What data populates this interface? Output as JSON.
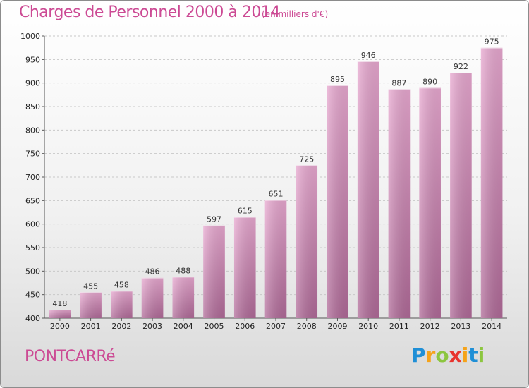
{
  "header": {
    "title": "Charges de Personnel 2000 à 2014",
    "subtitle": "(en milliers d'€)"
  },
  "footer": {
    "commune": "PONTCARRé",
    "logo_letters": [
      "P",
      "r",
      "o",
      "x",
      "i",
      "t",
      "i"
    ],
    "logo_colors": [
      "#1f8fd6",
      "#f5a31a",
      "#8cc63f",
      "#e8342e",
      "#f5a31a",
      "#1f8fd6",
      "#8cc63f"
    ]
  },
  "colors": {
    "bar_top": "#e8a8d0",
    "bar_bottom": "#b06a98",
    "text_accent": "#cc4a94"
  },
  "chart_data": {
    "type": "bar",
    "categories": [
      "2000",
      "2001",
      "2002",
      "2003",
      "2004",
      "2005",
      "2006",
      "2007",
      "2008",
      "2009",
      "2010",
      "2011",
      "2012",
      "2013",
      "2014"
    ],
    "values": [
      418,
      455,
      458,
      486,
      488,
      597,
      615,
      651,
      725,
      895,
      946,
      887,
      890,
      922,
      975
    ],
    "ylim": [
      400,
      1000
    ],
    "yticks": [
      400,
      450,
      500,
      550,
      600,
      650,
      700,
      750,
      800,
      850,
      900,
      950,
      1000
    ],
    "grid": true,
    "xlabel": "",
    "ylabel": ""
  }
}
